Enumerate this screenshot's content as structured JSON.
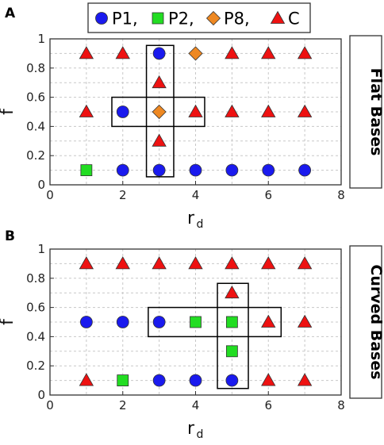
{
  "legend": {
    "items": [
      {
        "label": "P1,",
        "shape": "circle",
        "color": "#1a1aee"
      },
      {
        "label": "P2,",
        "shape": "square",
        "color": "#22dd22"
      },
      {
        "label": "P8,",
        "shape": "diamond",
        "color": "#ee8822"
      },
      {
        "label": "C",
        "shape": "triangle",
        "color": "#ee1111"
      }
    ]
  },
  "chart_data": [
    {
      "panel": "A",
      "type": "scatter",
      "side_title": "Flat Bases",
      "xlabel": "r",
      "xlabel_sub": "d",
      "ylabel": "f",
      "xlim": [
        0,
        8
      ],
      "ylim": [
        0,
        1
      ],
      "xticks": [
        "0",
        "2",
        "4",
        "6",
        "8"
      ],
      "yticks": [
        "0",
        "0.2",
        "0.4",
        "0.6",
        "0.8",
        "1"
      ],
      "grid": true,
      "series": [
        {
          "name": "P1",
          "points": [
            [
              2,
              0.1
            ],
            [
              3,
              0.1
            ],
            [
              4,
              0.1
            ],
            [
              5,
              0.1
            ],
            [
              6,
              0.1
            ],
            [
              7,
              0.1
            ],
            [
              2,
              0.5
            ],
            [
              3,
              0.9
            ]
          ]
        },
        {
          "name": "P2",
          "points": [
            [
              1,
              0.1
            ]
          ]
        },
        {
          "name": "P8",
          "points": [
            [
              3,
              0.5
            ],
            [
              4,
              0.9
            ]
          ]
        },
        {
          "name": "C",
          "points": [
            [
              1,
              0.5
            ],
            [
              4,
              0.5
            ],
            [
              5,
              0.5
            ],
            [
              6,
              0.5
            ],
            [
              7,
              0.5
            ],
            [
              1,
              0.9
            ],
            [
              2,
              0.9
            ],
            [
              5,
              0.9
            ],
            [
              6,
              0.9
            ],
            [
              7,
              0.9
            ],
            [
              3,
              0.7
            ],
            [
              3,
              0.3
            ]
          ]
        }
      ],
      "highlight_boxes": [
        {
          "x": [
            2.65,
            3.4
          ],
          "y": [
            0.055,
            0.955
          ]
        },
        {
          "x": [
            1.7,
            4.25
          ],
          "y": [
            0.4,
            0.6
          ]
        }
      ]
    },
    {
      "panel": "B",
      "type": "scatter",
      "side_title": "Curved Bases",
      "xlabel": "r",
      "xlabel_sub": "d",
      "ylabel": "f",
      "xlim": [
        0,
        8
      ],
      "ylim": [
        0,
        1
      ],
      "xticks": [
        "0",
        "2",
        "4",
        "6",
        "8"
      ],
      "yticks": [
        "0",
        "0.2",
        "0.4",
        "0.6",
        "0.8",
        "1"
      ],
      "grid": true,
      "series": [
        {
          "name": "P1",
          "points": [
            [
              3,
              0.1
            ],
            [
              4,
              0.1
            ],
            [
              5,
              0.1
            ],
            [
              1,
              0.5
            ],
            [
              2,
              0.5
            ],
            [
              3,
              0.5
            ]
          ]
        },
        {
          "name": "P2",
          "points": [
            [
              2,
              0.1
            ],
            [
              4,
              0.5
            ],
            [
              5,
              0.5
            ],
            [
              5,
              0.3
            ]
          ]
        },
        {
          "name": "C",
          "points": [
            [
              1,
              0.1
            ],
            [
              6,
              0.1
            ],
            [
              7,
              0.1
            ],
            [
              6,
              0.5
            ],
            [
              7,
              0.5
            ],
            [
              1,
              0.9
            ],
            [
              2,
              0.9
            ],
            [
              3,
              0.9
            ],
            [
              4,
              0.9
            ],
            [
              5,
              0.9
            ],
            [
              6,
              0.9
            ],
            [
              7,
              0.9
            ],
            [
              5,
              0.7
            ]
          ]
        }
      ],
      "highlight_boxes": [
        {
          "x": [
            4.6,
            5.45
          ],
          "y": [
            0.045,
            0.765
          ]
        },
        {
          "x": [
            2.7,
            6.35
          ],
          "y": [
            0.4,
            0.6
          ]
        }
      ]
    }
  ]
}
